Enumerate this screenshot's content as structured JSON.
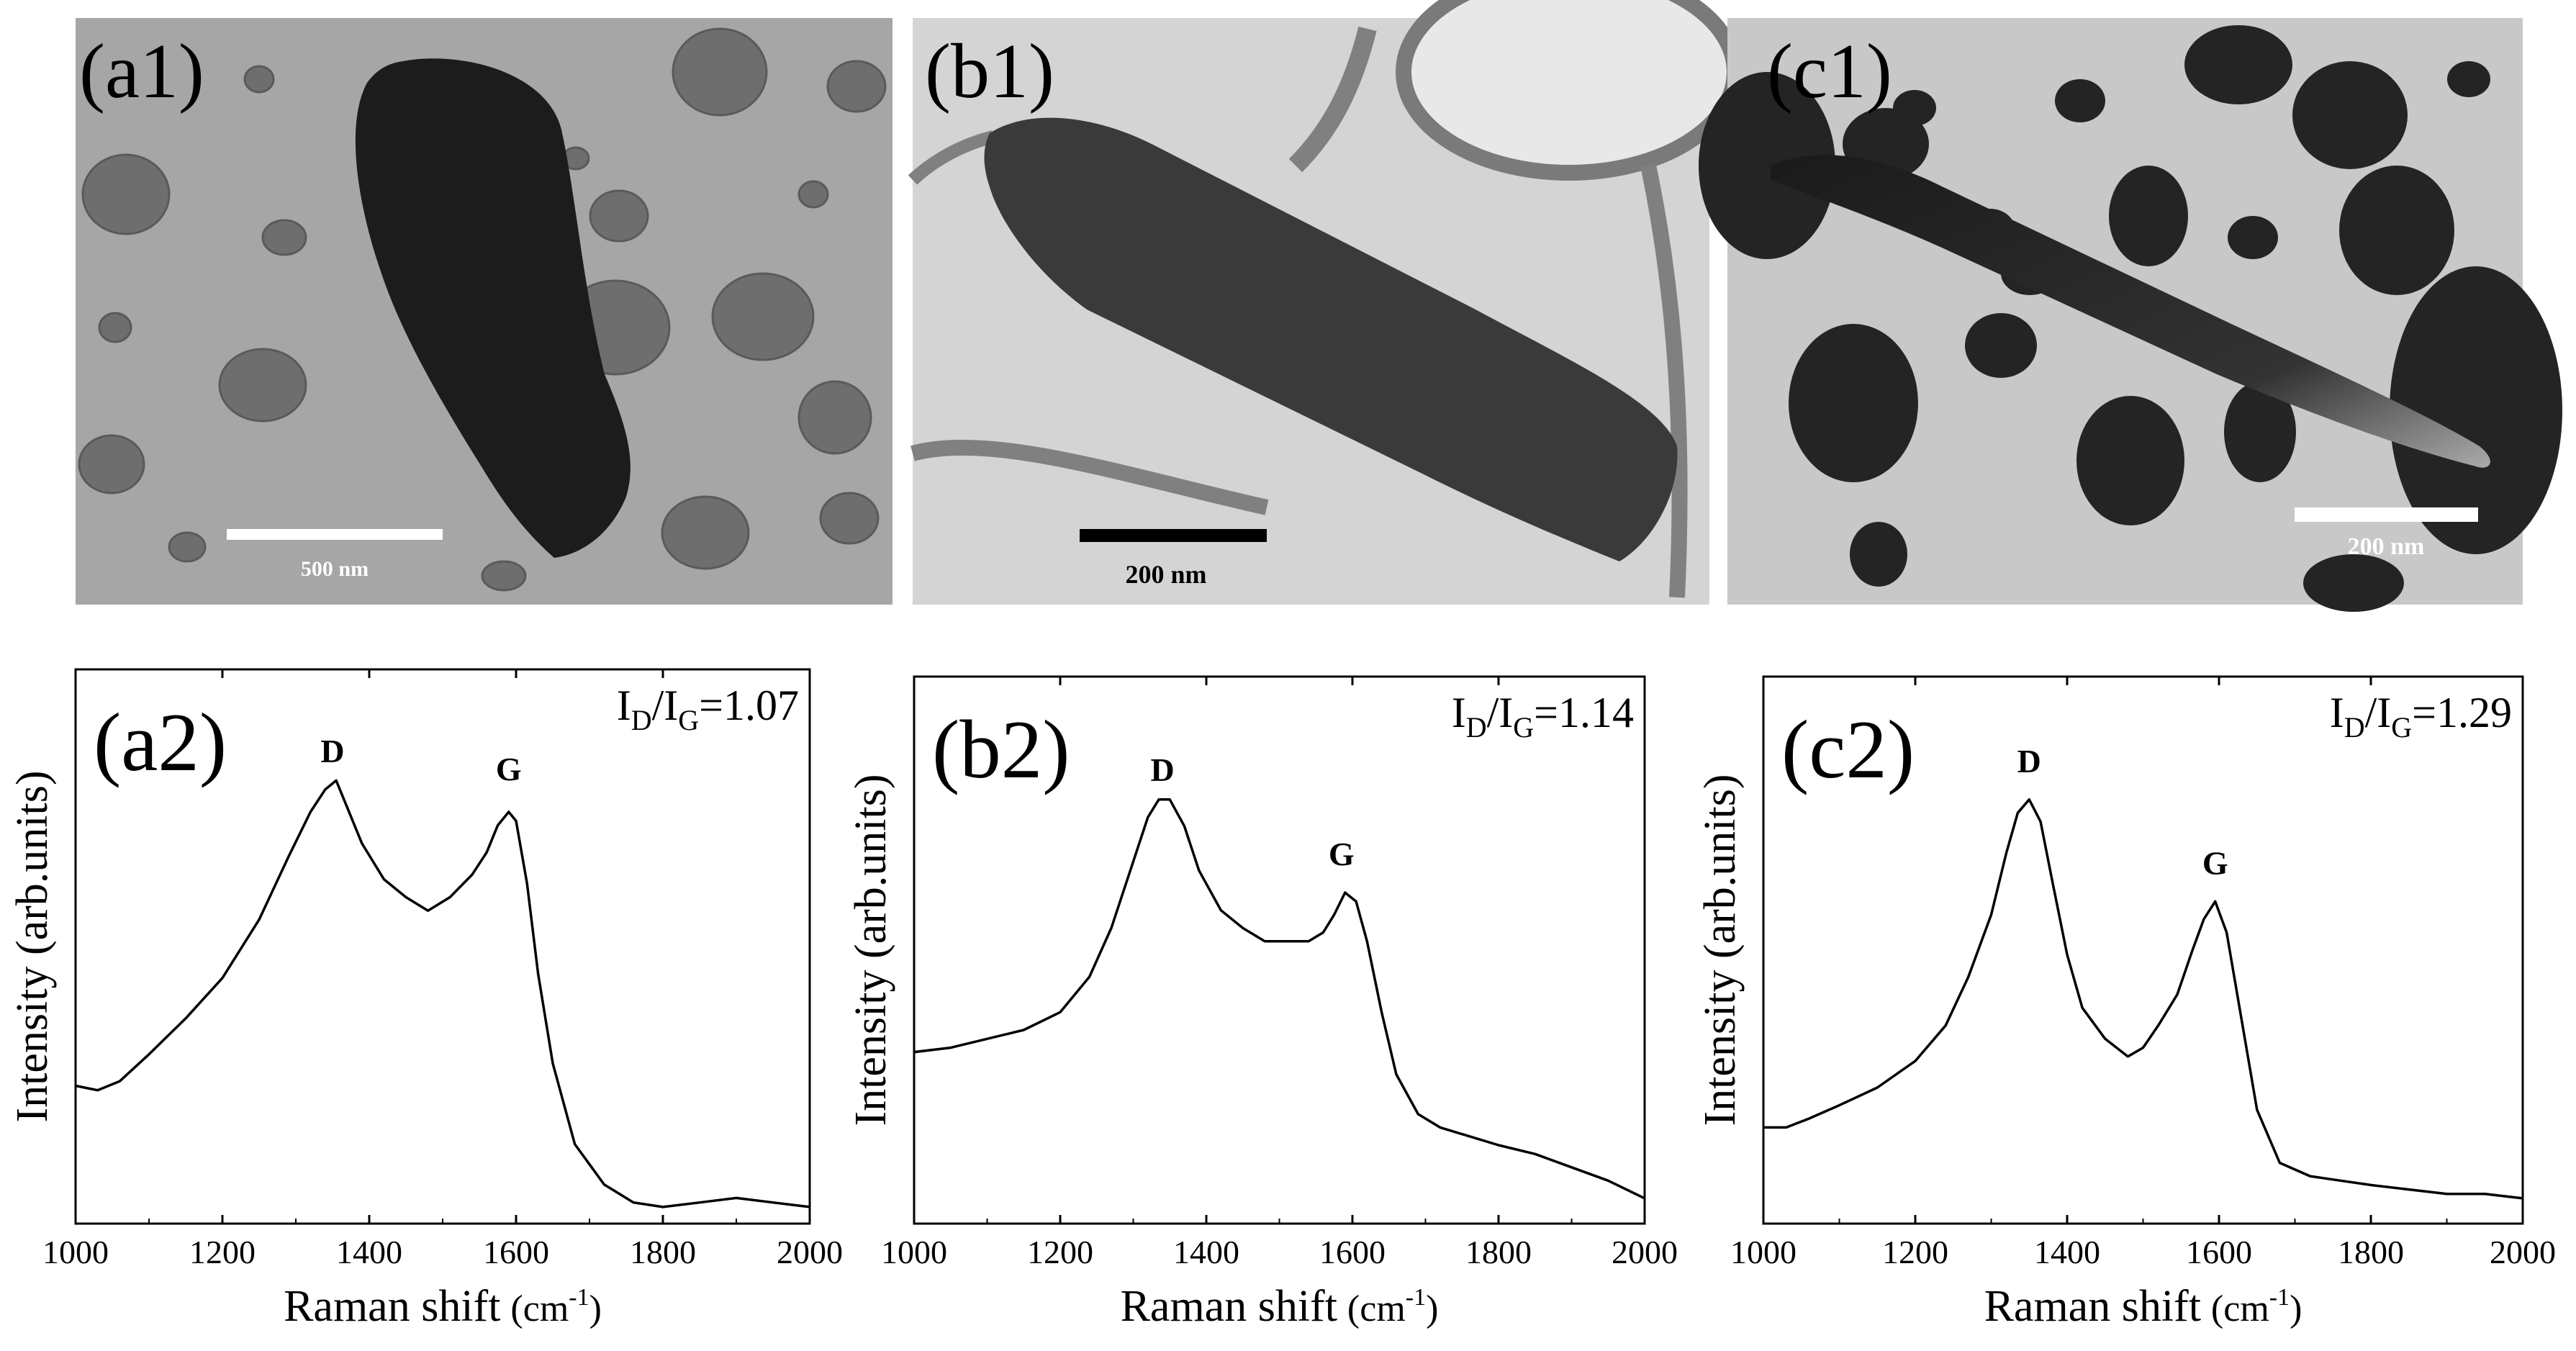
{
  "micrographs": [
    {
      "label": "(a1)",
      "scale_bar_label": "500 nm"
    },
    {
      "label": "(b1)",
      "scale_bar_label": "200 nm"
    },
    {
      "label": "(c1)",
      "scale_bar_label": "200 nm"
    }
  ],
  "chart_data": [
    {
      "type": "line",
      "panel_label": "(a2)",
      "ratio_text": {
        "main": "I",
        "sub1": "D",
        "slash": "/I",
        "sub2": "G",
        "value": "=1.07"
      },
      "xlabel": "Raman shift",
      "xunit": "(cm",
      "xunit_sup": "-1",
      "xunit_close": ")",
      "ylabel": "Intensity (arb.units)",
      "xlim": [
        1000,
        2000
      ],
      "ylim": [
        0,
        1
      ],
      "x_ticks": [
        1000,
        1200,
        1400,
        1600,
        1800,
        2000
      ],
      "peaks": [
        {
          "label": "D",
          "x": 1350,
          "y": 0.93
        },
        {
          "label": "G",
          "x": 1590,
          "y": 0.89
        }
      ],
      "series": [
        {
          "x": [
            1000,
            1030,
            1060,
            1100,
            1150,
            1200,
            1250,
            1290,
            1320,
            1340,
            1355,
            1370,
            1390,
            1420,
            1450,
            1480,
            1510,
            1540,
            1560,
            1575,
            1590,
            1600,
            1615,
            1630,
            1650,
            1680,
            1720,
            1760,
            1800,
            1850,
            1900,
            1950,
            2000
          ],
          "y": [
            0.27,
            0.26,
            0.28,
            0.34,
            0.42,
            0.51,
            0.64,
            0.78,
            0.88,
            0.93,
            0.95,
            0.89,
            0.81,
            0.73,
            0.69,
            0.66,
            0.69,
            0.74,
            0.79,
            0.85,
            0.88,
            0.86,
            0.72,
            0.52,
            0.32,
            0.14,
            0.05,
            0.01,
            0.0,
            0.01,
            0.02,
            0.01,
            0.0
          ]
        }
      ]
    },
    {
      "type": "line",
      "panel_label": "(b2)",
      "ratio_text": {
        "main": "I",
        "sub1": "D",
        "slash": "/I",
        "sub2": "G",
        "value": "=1.14"
      },
      "xlabel": "Raman shift",
      "xunit": "(cm",
      "xunit_sup": "-1",
      "xunit_close": ")",
      "ylabel": "Intensity (arb.units)",
      "xlim": [
        1000,
        2000
      ],
      "ylim": [
        0,
        1
      ],
      "x_ticks": [
        1000,
        1200,
        1400,
        1600,
        1800,
        2000
      ],
      "peaks": [
        {
          "label": "D",
          "x": 1340,
          "y": 0.9
        },
        {
          "label": "G",
          "x": 1585,
          "y": 0.71
        }
      ],
      "series": [
        {
          "x": [
            1000,
            1050,
            1100,
            1150,
            1200,
            1240,
            1270,
            1300,
            1320,
            1335,
            1350,
            1370,
            1390,
            1420,
            1450,
            1480,
            1510,
            1540,
            1560,
            1575,
            1590,
            1605,
            1620,
            1640,
            1660,
            1690,
            1720,
            1760,
            1800,
            1850,
            1900,
            1950,
            2000
          ],
          "y": [
            0.35,
            0.36,
            0.38,
            0.4,
            0.44,
            0.52,
            0.63,
            0.78,
            0.88,
            0.92,
            0.92,
            0.86,
            0.76,
            0.67,
            0.63,
            0.6,
            0.6,
            0.6,
            0.62,
            0.66,
            0.71,
            0.69,
            0.6,
            0.44,
            0.3,
            0.21,
            0.18,
            0.16,
            0.14,
            0.12,
            0.09,
            0.06,
            0.02
          ]
        }
      ]
    },
    {
      "type": "line",
      "panel_label": "(c2)",
      "ratio_text": {
        "main": "I",
        "sub1": "D",
        "slash": "/I",
        "sub2": "G",
        "value": "=1.29"
      },
      "xlabel": "Raman shift",
      "xunit": "(cm",
      "xunit_sup": "-1",
      "xunit_close": ")",
      "ylabel": "Intensity (arb.units)",
      "xlim": [
        1000,
        2000
      ],
      "ylim": [
        0,
        1
      ],
      "x_ticks": [
        1000,
        1200,
        1400,
        1600,
        1800,
        2000
      ],
      "peaks": [
        {
          "label": "D",
          "x": 1350,
          "y": 0.92
        },
        {
          "label": "G",
          "x": 1595,
          "y": 0.69
        }
      ],
      "series": [
        {
          "x": [
            1000,
            1030,
            1060,
            1100,
            1150,
            1200,
            1240,
            1270,
            1300,
            1320,
            1335,
            1350,
            1365,
            1380,
            1400,
            1420,
            1450,
            1480,
            1500,
            1520,
            1545,
            1565,
            1580,
            1595,
            1610,
            1630,
            1650,
            1680,
            1720,
            1760,
            1800,
            1850,
            1900,
            1950,
            2000
          ],
          "y": [
            0.18,
            0.18,
            0.2,
            0.23,
            0.27,
            0.33,
            0.41,
            0.52,
            0.66,
            0.8,
            0.89,
            0.92,
            0.87,
            0.74,
            0.57,
            0.45,
            0.38,
            0.34,
            0.36,
            0.41,
            0.48,
            0.58,
            0.65,
            0.69,
            0.62,
            0.42,
            0.22,
            0.1,
            0.07,
            0.06,
            0.05,
            0.04,
            0.03,
            0.03,
            0.02
          ]
        }
      ]
    }
  ]
}
